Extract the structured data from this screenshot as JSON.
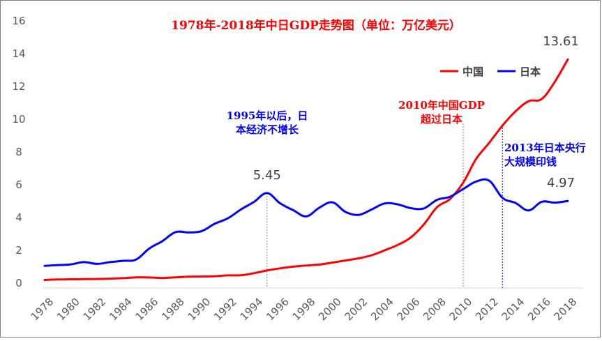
{
  "colors": {
    "china": "#ff0000",
    "japan": "#0000ff",
    "title": "#ff0000",
    "axis_text": "#595959"
  },
  "chart_data": {
    "type": "line",
    "title": "1978年-2018年中日GDP走势图（单位：万亿美元）",
    "xlabel": "",
    "ylabel": "",
    "ylim": [
      0,
      16
    ],
    "yticks": [
      "0",
      "2",
      "4",
      "6",
      "8",
      "10",
      "12",
      "14",
      "16"
    ],
    "x": [
      1978,
      1979,
      1980,
      1981,
      1982,
      1983,
      1984,
      1985,
      1986,
      1987,
      1988,
      1989,
      1990,
      1991,
      1992,
      1993,
      1994,
      1995,
      1996,
      1997,
      1998,
      1999,
      2000,
      2001,
      2002,
      2003,
      2004,
      2005,
      2006,
      2007,
      2008,
      2009,
      2010,
      2011,
      2012,
      2013,
      2014,
      2015,
      2016,
      2017,
      2018
    ],
    "xticks": [
      "1978",
      "1980",
      "1982",
      "1984",
      "1986",
      "1988",
      "1990",
      "1992",
      "1994",
      "1996",
      "1998",
      "2000",
      "2002",
      "2004",
      "2006",
      "2008",
      "2010",
      "2012",
      "2014",
      "2016",
      "2018"
    ],
    "legend": [
      "中国",
      "日本"
    ],
    "legend_position": "top-right",
    "series": [
      {
        "name": "中国",
        "color": "#ff0000",
        "values": [
          0.15,
          0.18,
          0.19,
          0.2,
          0.21,
          0.23,
          0.26,
          0.31,
          0.3,
          0.27,
          0.31,
          0.35,
          0.36,
          0.38,
          0.43,
          0.44,
          0.56,
          0.73,
          0.86,
          0.96,
          1.03,
          1.09,
          1.21,
          1.34,
          1.47,
          1.66,
          1.96,
          2.29,
          2.75,
          3.55,
          4.59,
          5.1,
          6.09,
          7.55,
          8.53,
          9.57,
          10.44,
          11.06,
          11.19,
          12.24,
          13.61
        ]
      },
      {
        "name": "日本",
        "color": "#0000ff",
        "values": [
          1.01,
          1.06,
          1.1,
          1.24,
          1.13,
          1.24,
          1.32,
          1.4,
          2.07,
          2.52,
          3.07,
          3.05,
          3.13,
          3.58,
          3.91,
          4.45,
          4.91,
          5.45,
          4.83,
          4.41,
          4.03,
          4.56,
          4.89,
          4.3,
          4.12,
          4.45,
          4.82,
          4.76,
          4.53,
          4.52,
          5.04,
          5.23,
          5.7,
          6.16,
          6.2,
          5.16,
          4.85,
          4.39,
          4.92,
          4.87,
          4.97
        ]
      }
    ],
    "data_labels": [
      {
        "series": "中国",
        "year": 2018,
        "text": "13.61"
      },
      {
        "series": "日本",
        "year": 1995,
        "text": "5.45"
      },
      {
        "series": "日本",
        "year": 2018,
        "text": "4.97"
      }
    ],
    "annotations": [
      {
        "year": 1995,
        "color": "#0000ff",
        "lines": [
          "1995年以后，日",
          "本经济不增长"
        ]
      },
      {
        "year": 2010,
        "color": "#ff0000",
        "lines": [
          "2010年中国GDP",
          "超过日本"
        ]
      },
      {
        "year": 2013,
        "color": "#0000ff",
        "lines": [
          "2013年日本央行",
          "大规模印钱"
        ]
      }
    ]
  }
}
